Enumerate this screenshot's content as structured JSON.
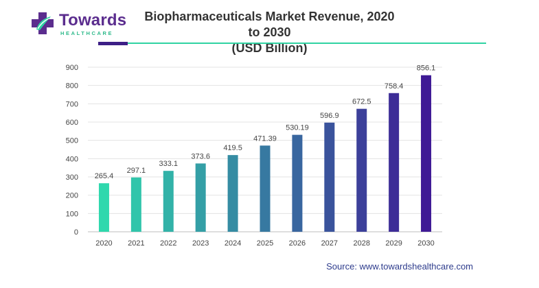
{
  "logo": {
    "name": "Towards",
    "tagline": "HEALTHCARE"
  },
  "title_line1": "Biopharmaceuticals Market Revenue, 2020 to 2030",
  "title_line2": "(USD Billion)",
  "source": "Source: www.towardshealthcare.com",
  "colors": {
    "brand_purple": "#5b2d8e",
    "accent_green": "#2fd3a2",
    "gradient_start": "#2fd8ad",
    "gradient_end": "#3f1a95"
  },
  "chart_data": {
    "type": "bar",
    "title": "Biopharmaceuticals Market Revenue, 2020 to 2030 (USD Billion)",
    "categories": [
      "2020",
      "2021",
      "2022",
      "2023",
      "2024",
      "2025",
      "2026",
      "2027",
      "2028",
      "2029",
      "2030"
    ],
    "values": [
      265.4,
      297.1,
      333.1,
      373.6,
      419.5,
      471.39,
      530.19,
      596.9,
      672.5,
      758.4,
      856.1
    ],
    "value_labels": [
      "265.4",
      "297.1",
      "333.1",
      "373.6",
      "419.5",
      "471.39",
      "530.19",
      "596.9",
      "672.5",
      "758.4",
      "856.1"
    ],
    "yticks": [
      "0",
      "100",
      "200",
      "300",
      "400",
      "500",
      "600",
      "700",
      "800",
      "900"
    ],
    "ylim": [
      0,
      900
    ],
    "xlabel": "",
    "ylabel": "",
    "grid": true,
    "legend": "none"
  }
}
